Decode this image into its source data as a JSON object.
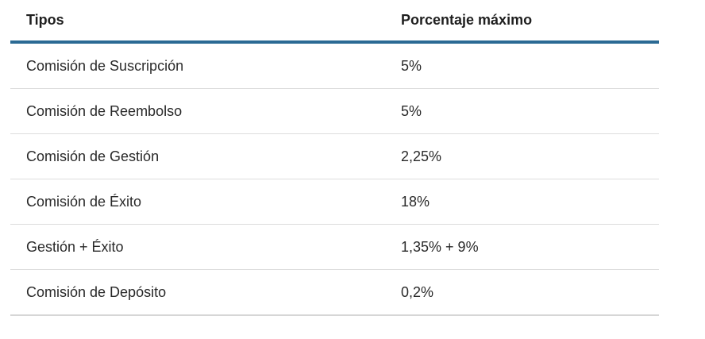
{
  "table": {
    "headers": [
      "Tipos",
      "Porcentaje máximo"
    ],
    "rows": [
      [
        "Comisión de Suscripción",
        "5%"
      ],
      [
        "Comisión de Reembolso",
        "5%"
      ],
      [
        "Comisión de Gestión",
        "2,25%"
      ],
      [
        "Comisión de Éxito",
        "18%"
      ],
      [
        "Gestión + Éxito",
        "1,35% + 9%"
      ],
      [
        "Comisión de Depósito",
        "0,2%"
      ]
    ]
  }
}
